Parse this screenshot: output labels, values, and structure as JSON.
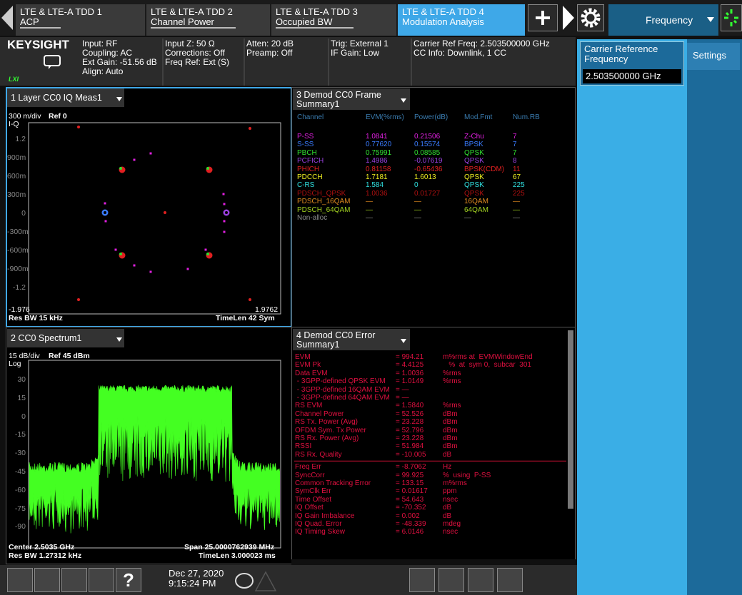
{
  "tabs": [
    {
      "line1": "LTE & LTE-A TDD 1",
      "line2": "ACP"
    },
    {
      "line1": "LTE & LTE-A TDD 2",
      "line2": "Channel Power"
    },
    {
      "line1": "LTE & LTE-A TDD 3",
      "line2": "Occupied BW"
    },
    {
      "line1": "LTE & LTE-A TDD 4",
      "line2": "Modulation Analysis"
    }
  ],
  "menu_title": "Frequency",
  "info": {
    "logo": "KEYSIGHT",
    "lxi": "LXI",
    "columns": [
      [
        "Input: RF",
        "Coupling: AC",
        "Ext Gain: -51.56 dB",
        "Align: Auto"
      ],
      [
        "Input Z: 50 Ω",
        "Corrections: Off",
        "Freq Ref: Ext (S)"
      ],
      [
        "Atten: 20 dB",
        "Preamp: Off"
      ],
      [
        "Trig: External 1",
        "IF Gain: Low"
      ],
      [
        "Carrier Ref Freq: 2.503500000 GHz",
        "CC Info: Downlink, 1 CC"
      ]
    ]
  },
  "side_panel": {
    "label": "Carrier Reference Frequency",
    "value": "2.503500000 GHz",
    "tab": "Settings"
  },
  "iq": {
    "title": "1 Layer CC0 IQ Meas1",
    "scale": "300 m/div",
    "ref": "Ref 0",
    "mode": "I-Q",
    "yticks": [
      "1.2",
      "900m",
      "600m",
      "300m",
      "0",
      "-300m",
      "-600m",
      "-900m",
      "-1.2"
    ],
    "x_left": "-1.976",
    "x_right": "1.9762",
    "res_bw": "Res BW 15 kHz",
    "time_len": "TimeLen 42  Sym"
  },
  "frame": {
    "title": [
      "3 Demod CC0 Frame",
      "Summary1"
    ],
    "columns": [
      "Channel",
      "EVM(%rms)",
      "Power(dB)",
      "Mod.Fmt",
      "Num.RB"
    ],
    "rows": [
      {
        "color": "#e020e0",
        "cells": [
          "P-SS",
          "1.0841",
          "0.21506",
          "Z-Chu",
          "7"
        ]
      },
      {
        "color": "#3a7cff",
        "cells": [
          "S-SS",
          "0.77620",
          "0.15574",
          "BPSK",
          "7"
        ]
      },
      {
        "color": "#30e030",
        "cells": [
          "PBCH",
          "0.75991",
          "0.08585",
          "QPSK",
          "7"
        ]
      },
      {
        "color": "#9a40e0",
        "cells": [
          "PCFICH",
          "1.4986",
          "-0.07619",
          "QPSK",
          "8"
        ]
      },
      {
        "color": "#e02020",
        "cells": [
          "PHICH",
          "0.81158",
          "-0.65436",
          "BPSK(CDM)",
          "11"
        ]
      },
      {
        "color": "#f0f020",
        "cells": [
          "PDCCH",
          "1.7181",
          "1.6013",
          "QPSK",
          "67"
        ]
      },
      {
        "color": "#30e0e0",
        "cells": [
          "C-RS",
          "1.584",
          "0",
          "QPSK",
          "225"
        ]
      },
      {
        "color": "#b01010",
        "cells": [
          "PDSCH_QPSK",
          "1.0036",
          "0.01727",
          "QPSK",
          "225"
        ]
      },
      {
        "color": "#e08a20",
        "cells": [
          "PDSCH_16QAM",
          "—",
          "—",
          "16QAM",
          "—"
        ]
      },
      {
        "color": "#a0d020",
        "cells": [
          "PDSCH_64QAM",
          "—",
          "—",
          "64QAM",
          "—"
        ]
      },
      {
        "color": "#8a8a8a",
        "cells": [
          "Non-alloc",
          "—",
          "—",
          "—",
          "—"
        ]
      }
    ]
  },
  "spectrum": {
    "title": "2 CC0 Spectrum1",
    "scale": "15 dB/div",
    "ref": "Ref 45 dBm",
    "mode": "Log",
    "yticks": [
      "30",
      "15",
      "0",
      "-15",
      "-30",
      "-45",
      "-60",
      "-75",
      "-90"
    ],
    "center": "Center 2.5035 GHz",
    "span": "Span 25.0000762939 MHz",
    "res_bw": "Res BW 1.27312 kHz",
    "time_len": "TimeLen 3.000023 ms"
  },
  "error": {
    "title": [
      "4 Demod CC0 Error",
      "Summary1"
    ],
    "groups": [
      [
        {
          "label": "EVM",
          "value": "= 994.21",
          "unit": "m%rms at  EVMWindowEnd"
        },
        {
          "label": "EVM Pk",
          "value": "= 4.4125",
          "unit": "   %  at  sym 0,  subcar  301"
        },
        {
          "label": "Data EVM",
          "value": "= 1.0036",
          "unit": "%rms"
        },
        {
          "label": " - 3GPP-defined QPSK EVM",
          "value": "= 1.0149",
          "unit": "%rms"
        },
        {
          "label": " - 3GPP-defined 16QAM EVM",
          "value": "= —"
        },
        {
          "label": " - 3GPP-defined 64QAM EVM",
          "value": "= —"
        },
        {
          "label": "RS EVM",
          "value": "= 1.5840",
          "unit": "%rms"
        },
        {
          "label": "Channel Power",
          "value": "= 52.526",
          "unit": "dBm"
        },
        {
          "label": "RS Tx. Power (Avg)",
          "value": "= 23.228",
          "unit": "dBm"
        },
        {
          "label": "OFDM Sym. Tx Power",
          "value": "= 52.796",
          "unit": "dBm"
        },
        {
          "label": "RS Rx. Power (Avg)",
          "value": "= 23.228",
          "unit": "dBm"
        },
        {
          "label": "RSSI",
          "value": "= 51.984",
          "unit": "dBm"
        },
        {
          "label": "RS Rx. Quality",
          "value": "= -10.005",
          "unit": "dB"
        }
      ],
      [
        {
          "label": "Freq Err",
          "value": "= -8.7062",
          "unit": "Hz"
        },
        {
          "label": "SyncCorr",
          "value": "= 99.925",
          "unit": "%  using  P-SS"
        },
        {
          "label": "Common Tracking Error",
          "value": "= 133.15",
          "unit": "m%rms"
        },
        {
          "label": "SymClk Err",
          "value": "= 0.01617",
          "unit": "ppm"
        },
        {
          "label": "Time Offset",
          "value": "= 54.643",
          "unit": "nsec"
        },
        {
          "label": "IQ Offset",
          "value": "= -70.352",
          "unit": "dB"
        },
        {
          "label": "IQ Gain Imbalance",
          "value": "= 0.002",
          "unit": "dB"
        },
        {
          "label": "IQ Quad. Error",
          "value": "= -48.339",
          "unit": "mdeg"
        },
        {
          "label": "IQ Timing Skew",
          "value": "= 6.0146",
          "unit": "nsec"
        }
      ]
    ]
  },
  "taskbar": {
    "date": "Dec 27, 2020",
    "time": "9:15:24 PM",
    "help": "?"
  }
}
